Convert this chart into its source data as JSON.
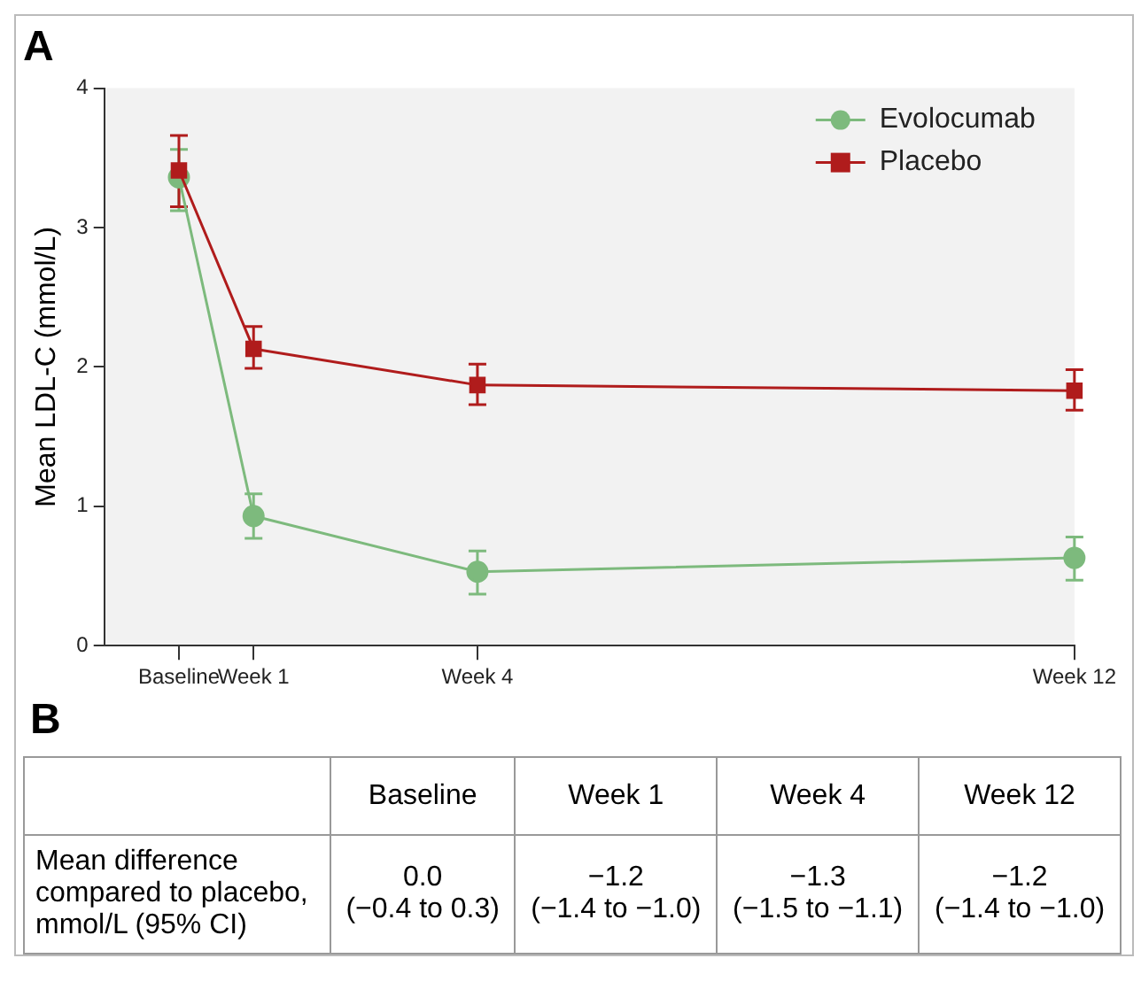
{
  "chart_data": [
    {
      "type": "line",
      "title": "A",
      "ylabel": "Mean LDL-C (mmol/L)",
      "categories": [
        null,
        "Baseline",
        "Week 1",
        null,
        null,
        "Week 4",
        null,
        null,
        null,
        null,
        null,
        null,
        null,
        "Week 12"
      ],
      "ylim": [
        0,
        4
      ],
      "yticks": [
        0,
        1,
        2,
        3,
        4
      ],
      "grid": false,
      "legend": "top right",
      "series": [
        {
          "name": "Evolocumab",
          "color": "#7dba7d",
          "marker": "circle",
          "values": [
            null,
            3.36,
            0.93,
            null,
            null,
            0.53,
            null,
            null,
            null,
            null,
            null,
            null,
            null,
            0.63
          ],
          "errors": [
            null,
            [
              3.12,
              3.56
            ],
            [
              0.77,
              1.09
            ],
            null,
            null,
            [
              0.37,
              0.68
            ],
            null,
            null,
            null,
            null,
            null,
            null,
            null,
            [
              0.47,
              0.78
            ]
          ]
        },
        {
          "name": "Placebo",
          "color": "#b01c1c",
          "marker": "square",
          "values": [
            null,
            3.41,
            2.13,
            null,
            null,
            1.87,
            null,
            null,
            null,
            null,
            null,
            null,
            null,
            1.83
          ],
          "errors": [
            null,
            [
              3.15,
              3.66
            ],
            [
              1.99,
              2.29
            ],
            null,
            null,
            [
              1.73,
              2.02
            ],
            null,
            null,
            null,
            null,
            null,
            null,
            null,
            [
              1.69,
              1.98
            ]
          ]
        }
      ]
    },
    {
      "type": "other",
      "title": "B",
      "annotations": [
        "Baseline",
        "Week 1",
        "Week 4",
        "Week 12",
        "Mean difference compared to placebo, mmol/L (95% CI)",
        "0.0 (−0.4 to 0.3)",
        "−1.2 (−1.4 to −1.0)",
        "−1.3 (−1.5 to −1.1)",
        "−1.2 (−1.4 to −1.0)"
      ]
    }
  ]
}
